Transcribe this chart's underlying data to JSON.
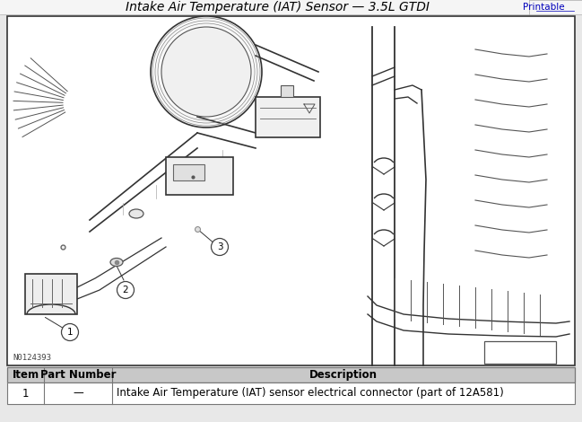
{
  "title": "Intake Air Temperature (IAT) Sensor — 3.5L GTDI",
  "printable_link": "Printable",
  "diagram_note": "N0124393",
  "page_bg": "#e8e8e8",
  "header_bg": "#f5f5f5",
  "diagram_box_color": "#ffffff",
  "diagram_border_color": "#333333",
  "table_header_bg": "#c8c8c8",
  "table_row_bg": "#ffffff",
  "table_border": "#777777",
  "title_color": "#000000",
  "link_color": "#0000bb",
  "line_color": "#333333",
  "table_headers": [
    "Item",
    "Part Number",
    "Description"
  ],
  "table_rows": [
    [
      "1",
      "—",
      "Intake Air Temperature (IAT) sensor electrical connector (part of 12A581)"
    ]
  ],
  "callout_labels": [
    "1",
    "2",
    "3"
  ],
  "font_size_title": 10,
  "font_size_table": 8.5
}
